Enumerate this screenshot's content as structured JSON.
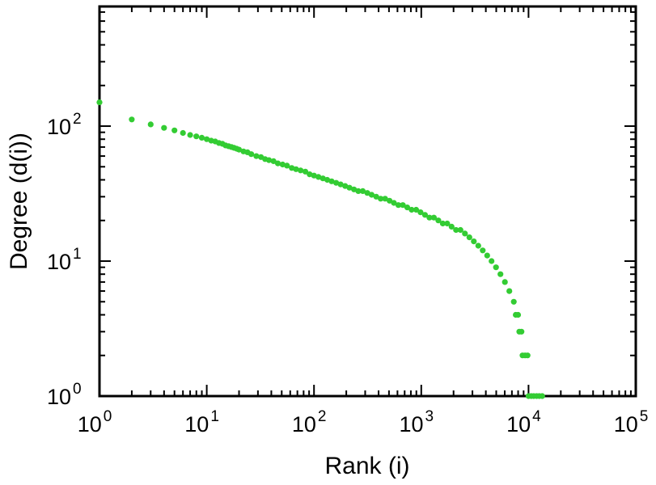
{
  "chart_data": {
    "type": "scatter",
    "title": "",
    "xlabel": "Rank (i)",
    "ylabel": "Degree (d(i))",
    "x_scale": "log",
    "y_scale": "log",
    "xlim": [
      1,
      100000
    ],
    "ylim": [
      1,
      770
    ],
    "tick_base": "10",
    "x_tick_exponents": [
      "0",
      "1",
      "2",
      "3",
      "4",
      "5"
    ],
    "y_tick_exponents": [
      "0",
      "1",
      "2"
    ],
    "grid": false,
    "marker_color": "#33cc33",
    "marker_shape": "circle",
    "points": [
      [
        1,
        150
      ],
      [
        2,
        112
      ],
      [
        3,
        103
      ],
      [
        4,
        97
      ],
      [
        5,
        93
      ],
      [
        6,
        89
      ],
      [
        7,
        86
      ],
      [
        8,
        84
      ],
      [
        9,
        82
      ],
      [
        10,
        80
      ],
      [
        11,
        78
      ],
      [
        12,
        77
      ],
      [
        13,
        75
      ],
      [
        14,
        74
      ],
      [
        15,
        72
      ],
      [
        16,
        71
      ],
      [
        17,
        70
      ],
      [
        18,
        69
      ],
      [
        19,
        68
      ],
      [
        20,
        67
      ],
      [
        22,
        65
      ],
      [
        24,
        64
      ],
      [
        26,
        62
      ],
      [
        29,
        60
      ],
      [
        32,
        59
      ],
      [
        35,
        57
      ],
      [
        38,
        56
      ],
      [
        42,
        55
      ],
      [
        46,
        53
      ],
      [
        51,
        52
      ],
      [
        56,
        51
      ],
      [
        62,
        49
      ],
      [
        68,
        48
      ],
      [
        75,
        47
      ],
      [
        83,
        46
      ],
      [
        91,
        44
      ],
      [
        100,
        43
      ],
      [
        110,
        42
      ],
      [
        121,
        41
      ],
      [
        133,
        40
      ],
      [
        146,
        39
      ],
      [
        161,
        38
      ],
      [
        177,
        37
      ],
      [
        195,
        36
      ],
      [
        214,
        35
      ],
      [
        236,
        34
      ],
      [
        259,
        33
      ],
      [
        285,
        33
      ],
      [
        314,
        32
      ],
      [
        345,
        31
      ],
      [
        380,
        30
      ],
      [
        418,
        29
      ],
      [
        460,
        29
      ],
      [
        506,
        28
      ],
      [
        556,
        27
      ],
      [
        612,
        26
      ],
      [
        673,
        26
      ],
      [
        740,
        25
      ],
      [
        814,
        24
      ],
      [
        896,
        24
      ],
      [
        985,
        23
      ],
      [
        1084,
        22
      ],
      [
        1192,
        21
      ],
      [
        1311,
        21
      ],
      [
        1442,
        20
      ],
      [
        1586,
        19
      ],
      [
        1745,
        19
      ],
      [
        1919,
        18
      ],
      [
        2111,
        17
      ],
      [
        2322,
        17
      ],
      [
        2554,
        16
      ],
      [
        2810,
        15
      ],
      [
        3091,
        14
      ],
      [
        3400,
        13
      ],
      [
        3740,
        12
      ],
      [
        4114,
        11
      ],
      [
        4526,
        10
      ],
      [
        4978,
        9
      ],
      [
        5476,
        8
      ],
      [
        6023,
        7
      ],
      [
        6626,
        6
      ],
      [
        7289,
        5
      ],
      [
        7600,
        4
      ],
      [
        8000,
        4
      ],
      [
        8200,
        3
      ],
      [
        8600,
        3
      ],
      [
        8800,
        2
      ],
      [
        9300,
        2
      ],
      [
        9800,
        2
      ],
      [
        10000,
        1
      ],
      [
        10600,
        1
      ],
      [
        11200,
        1
      ],
      [
        11900,
        1
      ],
      [
        12600,
        1
      ],
      [
        13400,
        1
      ]
    ]
  }
}
